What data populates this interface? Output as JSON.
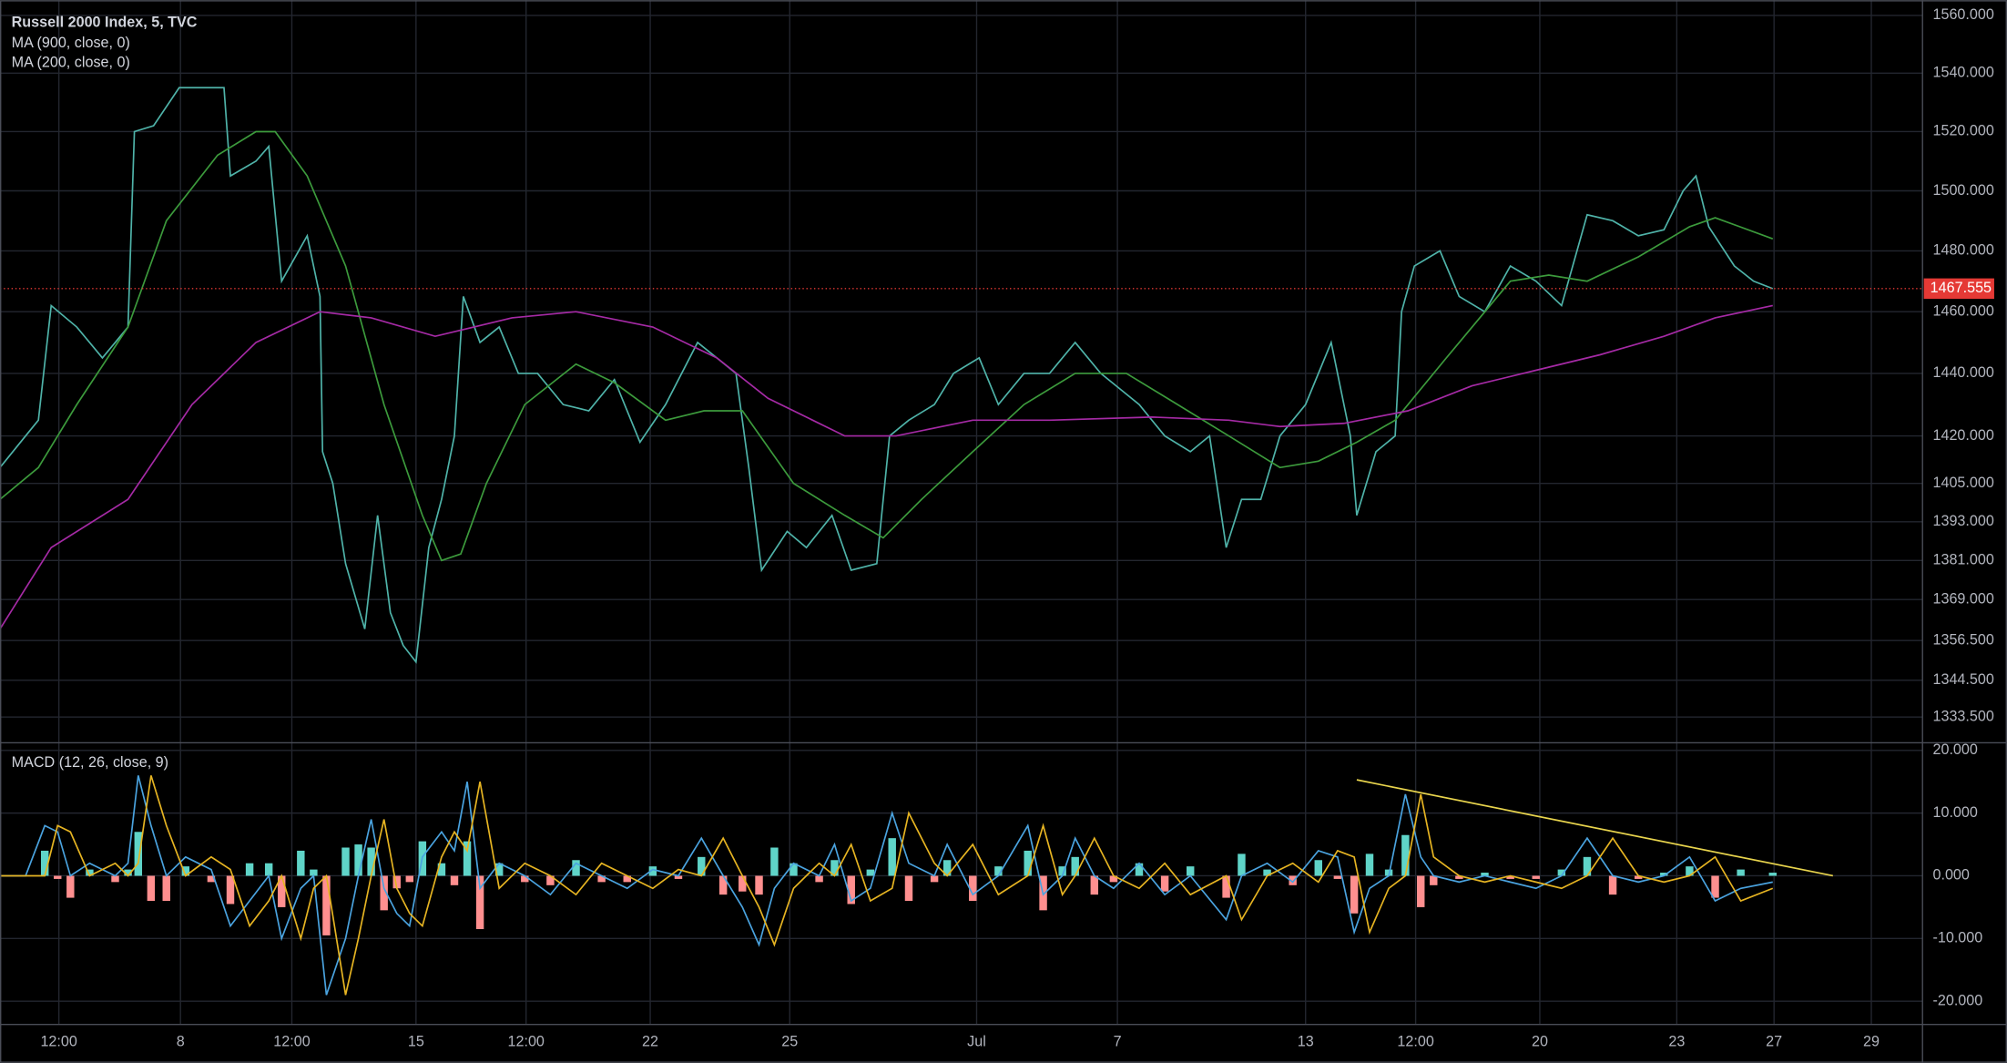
{
  "chart_data": [
    {
      "type": "line",
      "log_scale": true,
      "ylim": [
        1326.6,
        1563.1
      ],
      "xlim": [
        0,
        150.2
      ],
      "grid": true,
      "yticks": [
        {
          "value": 1560,
          "label": "1560.000"
        },
        {
          "value": 1540,
          "label": "1540.000"
        },
        {
          "value": 1520,
          "label": "1520.000"
        },
        {
          "value": 1500,
          "label": "1500.000"
        },
        {
          "value": 1480,
          "label": "1480.000"
        },
        {
          "value": 1460,
          "label": "1460.000"
        },
        {
          "value": 1440,
          "label": "1440.000"
        },
        {
          "value": 1420,
          "label": "1420.000"
        },
        {
          "value": 1405,
          "label": "1405.000"
        },
        {
          "value": 1393,
          "label": "1393.000"
        },
        {
          "value": 1381,
          "label": "1381.000"
        },
        {
          "value": 1369,
          "label": "1369.000"
        },
        {
          "value": 1356.5,
          "label": "1356.500"
        },
        {
          "value": 1344.5,
          "label": "1344.500"
        },
        {
          "value": 1333.5,
          "label": "1333.500"
        }
      ],
      "last_price": 1467.555,
      "last_price_color": "#e53935",
      "series": [
        {
          "name": "Russell 2000 Index, 5, TVC",
          "color": "#4fb3a9",
          "x": [
            0,
            2,
            3,
            4,
            6,
            8,
            10,
            10.5,
            12,
            14,
            16,
            17.5,
            18,
            20,
            21,
            22,
            24,
            25,
            25.2,
            26,
            27,
            28.5,
            29.5,
            30.5,
            31.5,
            32.5,
            33.5,
            34.5,
            35.5,
            36.2,
            37.5,
            39,
            40.5,
            42,
            44,
            46,
            48,
            50,
            52,
            54.5,
            56,
            57.5,
            58.5,
            59.5,
            61.5,
            63,
            65,
            66.5,
            68.5,
            69.5,
            71,
            73,
            74.5,
            76.5,
            78,
            80,
            82,
            84,
            86,
            87.5,
            89,
            91,
            93,
            94.5,
            95.8,
            97,
            98.5,
            100,
            102,
            104,
            105.5,
            106,
            107.5,
            109,
            109.5,
            110.5,
            112.5,
            114,
            116,
            118,
            120,
            122,
            124,
            126,
            128,
            130,
            131.5,
            132.5,
            133.5,
            135.5,
            137,
            138.5
          ],
          "values": [
            1410,
            1420,
            1425,
            1462,
            1455,
            1445,
            1455,
            1520,
            1522,
            1535,
            1535,
            1535,
            1505,
            1510,
            1515,
            1470,
            1485,
            1465,
            1415,
            1405,
            1380,
            1360,
            1395,
            1365,
            1355,
            1350,
            1385,
            1400,
            1420,
            1465,
            1450,
            1455,
            1440,
            1440,
            1430,
            1428,
            1438,
            1418,
            1430,
            1450,
            1445,
            1440,
            1410,
            1378,
            1390,
            1385,
            1395,
            1378,
            1380,
            1420,
            1425,
            1430,
            1440,
            1445,
            1430,
            1440,
            1440,
            1450,
            1440,
            1435,
            1430,
            1420,
            1415,
            1420,
            1385,
            1400,
            1400,
            1420,
            1430,
            1450,
            1420,
            1395,
            1415,
            1420,
            1460,
            1475,
            1480,
            1465,
            1460,
            1475,
            1470,
            1462,
            1492,
            1490,
            1485,
            1487,
            1500,
            1505,
            1488,
            1475,
            1470,
            1467.555
          ]
        },
        {
          "name": "MA (900, close, 0)",
          "color": "#3c9a3c",
          "x": [
            0,
            3,
            6,
            10,
            13,
            17,
            20,
            21.5,
            24,
            27,
            30,
            33,
            34.5,
            36,
            38,
            41,
            45,
            48,
            52,
            55,
            58,
            62,
            66,
            69,
            72,
            76,
            80,
            84,
            88,
            92,
            96,
            100,
            103,
            106,
            109,
            113,
            118,
            121,
            124,
            128,
            132,
            134,
            138.5
          ],
          "values": [
            1400,
            1410,
            1430,
            1455,
            1490,
            1512,
            1520,
            1520,
            1505,
            1475,
            1430,
            1395,
            1381,
            1383,
            1405,
            1430,
            1443,
            1437,
            1425,
            1428,
            1428,
            1405,
            1395,
            1388,
            1400,
            1415,
            1430,
            1440,
            1440,
            1430,
            1420,
            1410,
            1412,
            1418,
            1425,
            1445,
            1470,
            1472,
            1470,
            1478,
            1488,
            1491,
            1484
          ]
        },
        {
          "name": "MA (200, close, 0)",
          "color": "#a52aa5",
          "x": [
            0,
            4,
            10,
            15,
            20,
            25,
            29,
            34,
            40,
            45,
            51,
            56,
            60,
            66,
            70,
            76,
            82,
            90,
            96,
            100,
            105,
            110,
            115,
            120,
            125,
            130,
            134,
            138.5
          ],
          "values": [
            1360,
            1385,
            1400,
            1430,
            1450,
            1460,
            1458,
            1452,
            1458,
            1460,
            1455,
            1445,
            1432,
            1420,
            1420,
            1425,
            1425,
            1426,
            1425,
            1423,
            1424,
            1428,
            1436,
            1441,
            1446,
            1452,
            1458,
            1462
          ]
        }
      ]
    },
    {
      "type": "line",
      "title": "MACD (12, 26, close, 9)",
      "ylim": [
        -23.7,
        20.6
      ],
      "xlim": [
        0,
        150.2
      ],
      "grid": true,
      "yticks": [
        {
          "value": 20,
          "label": "20.000"
        },
        {
          "value": 10,
          "label": "10.000"
        },
        {
          "value": 0,
          "label": "0.000"
        },
        {
          "value": -10,
          "label": "-10.000"
        },
        {
          "value": -20,
          "label": "-20.000"
        }
      ],
      "xticks": [
        {
          "value": 4.6,
          "label": "12:00"
        },
        {
          "value": 14.1,
          "label": "8"
        },
        {
          "value": 22.8,
          "label": "12:00"
        },
        {
          "value": 32.5,
          "label": "15"
        },
        {
          "value": 41.1,
          "label": "12:00"
        },
        {
          "value": 50.8,
          "label": "22"
        },
        {
          "value": 61.7,
          "label": "25"
        },
        {
          "value": 76.3,
          "label": "Jul"
        },
        {
          "value": 87.3,
          "label": "7"
        },
        {
          "value": 102,
          "label": "13"
        },
        {
          "value": 110.6,
          "label": "12:00"
        },
        {
          "value": 120.3,
          "label": "20"
        },
        {
          "value": 131,
          "label": "23"
        },
        {
          "value": 138.6,
          "label": "27"
        },
        {
          "value": 146.2,
          "label": "29"
        }
      ],
      "x": [
        0,
        2,
        3.5,
        4.5,
        5.5,
        7,
        9,
        10,
        10.8,
        11.8,
        13,
        14.5,
        16.5,
        18,
        19.5,
        21,
        22,
        23.5,
        24.5,
        25.5,
        27,
        28,
        29,
        30,
        31,
        32,
        33,
        34.5,
        35.5,
        36.5,
        37.5,
        39,
        41,
        43,
        45,
        47,
        49,
        51,
        53,
        54.8,
        56.5,
        58,
        59.3,
        60.5,
        62,
        64,
        65.2,
        66.5,
        68,
        69.7,
        71,
        73,
        74,
        76,
        78,
        80.3,
        81.5,
        83,
        84,
        85.5,
        87,
        89,
        91,
        93,
        95.8,
        97,
        99,
        101,
        103,
        104.5,
        105.8,
        107,
        108.5,
        109.8,
        111,
        112,
        114,
        116,
        118,
        120,
        122,
        124,
        126,
        128,
        130,
        132,
        134,
        136,
        138.5
      ],
      "histogram": {
        "color_up": "#5fd4c8",
        "color_down": "#ff8f8f",
        "values": [
          0,
          0,
          4,
          -0.5,
          -3.5,
          1,
          -1,
          1,
          7,
          -4,
          -4,
          1.5,
          -1,
          -4.5,
          2,
          2,
          -5,
          4,
          1,
          -9.5,
          4.5,
          5,
          4.5,
          -5.5,
          -2,
          -1,
          5.5,
          2,
          -1.5,
          5.5,
          -8.5,
          2,
          -1,
          -1.5,
          2.5,
          -1,
          -1,
          1.5,
          -0.5,
          3,
          -3,
          -2.5,
          -3,
          4.5,
          2,
          -1,
          2.5,
          -4.5,
          1,
          6,
          -4,
          -1,
          2.5,
          -4,
          1.5,
          4,
          -5.5,
          1.5,
          3,
          -3,
          -1,
          2,
          -2.5,
          1.5,
          -3.5,
          3.5,
          1,
          -1.5,
          2.5,
          -0.5,
          -6,
          3.5,
          1,
          6.5,
          -5,
          -1.5,
          -0.5,
          0.5,
          -0.5,
          -0.5,
          1,
          3,
          -3,
          -0.5,
          0.5,
          1.5,
          -3.5,
          1,
          0.5
        ]
      },
      "series": [
        {
          "color": "#4aa3df",
          "values": [
            0,
            0,
            8,
            7,
            0,
            2,
            0,
            2,
            16,
            8,
            0,
            3,
            1,
            -8,
            -4,
            0,
            -10,
            -2,
            0,
            -19,
            -10,
            0,
            9,
            -2,
            -6,
            -8,
            3,
            7,
            4,
            15,
            -2,
            2,
            0,
            -3,
            2,
            0,
            -2,
            1,
            0,
            6,
            0,
            -5,
            -11,
            -2,
            2,
            0,
            5,
            -4,
            -2,
            10,
            2,
            0,
            5,
            -3,
            0,
            8,
            -3,
            0,
            6,
            0,
            -2,
            2,
            -3,
            0,
            -7,
            0,
            2,
            -1,
            4,
            3,
            -9,
            -2,
            0,
            13,
            3,
            0,
            -1,
            0,
            -1,
            -2,
            0,
            6,
            0,
            -1,
            0,
            3,
            -4,
            -2,
            -1
          ]
        },
        {
          "color": "#e6b422",
          "values": [
            0,
            0,
            0,
            8,
            7,
            0,
            2,
            0,
            2,
            16,
            8,
            0,
            3,
            1,
            -8,
            -4,
            0,
            -10,
            -2,
            0,
            -19,
            -10,
            0,
            9,
            -2,
            -6,
            -8,
            3,
            7,
            4,
            15,
            -2,
            2,
            0,
            -3,
            2,
            0,
            -2,
            1,
            0,
            6,
            0,
            -5,
            -11,
            -2,
            2,
            0,
            5,
            -4,
            -2,
            10,
            2,
            0,
            5,
            -3,
            0,
            8,
            -3,
            0,
            6,
            0,
            -2,
            2,
            -3,
            0,
            -7,
            0,
            2,
            -1,
            4,
            3,
            -9,
            -2,
            0,
            13,
            3,
            0,
            -1,
            0,
            -1,
            -2,
            0,
            6,
            0,
            -1,
            0,
            3,
            -4,
            -2
          ]
        }
      ],
      "trendline": {
        "x": [
          106,
          143.2
        ],
        "values": [
          15.3,
          0
        ],
        "color": "#e8d44d"
      }
    }
  ]
}
